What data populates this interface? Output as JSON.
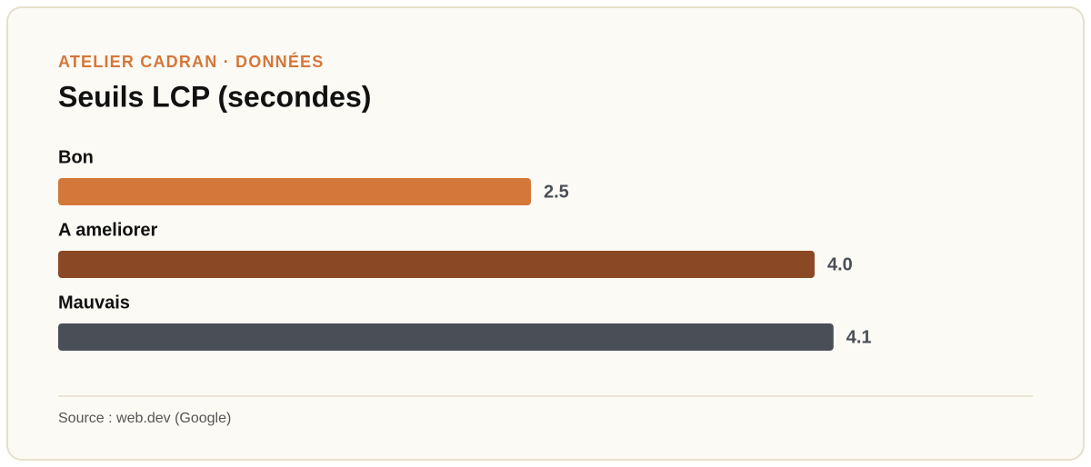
{
  "chart_data": {
    "type": "bar",
    "orientation": "horizontal",
    "kicker": "ATELIER CADRAN · DONNÉES",
    "title": "Seuils LCP (secondes)",
    "categories": [
      "Bon",
      "A ameliorer",
      "Mauvais"
    ],
    "values": [
      2.5,
      4.0,
      4.1
    ],
    "value_labels": [
      "2.5",
      "4.0",
      "4.1"
    ],
    "colors": [
      "#d4773a",
      "#8b4825",
      "#4a4f57"
    ],
    "source": "Source : web.dev (Google)"
  }
}
